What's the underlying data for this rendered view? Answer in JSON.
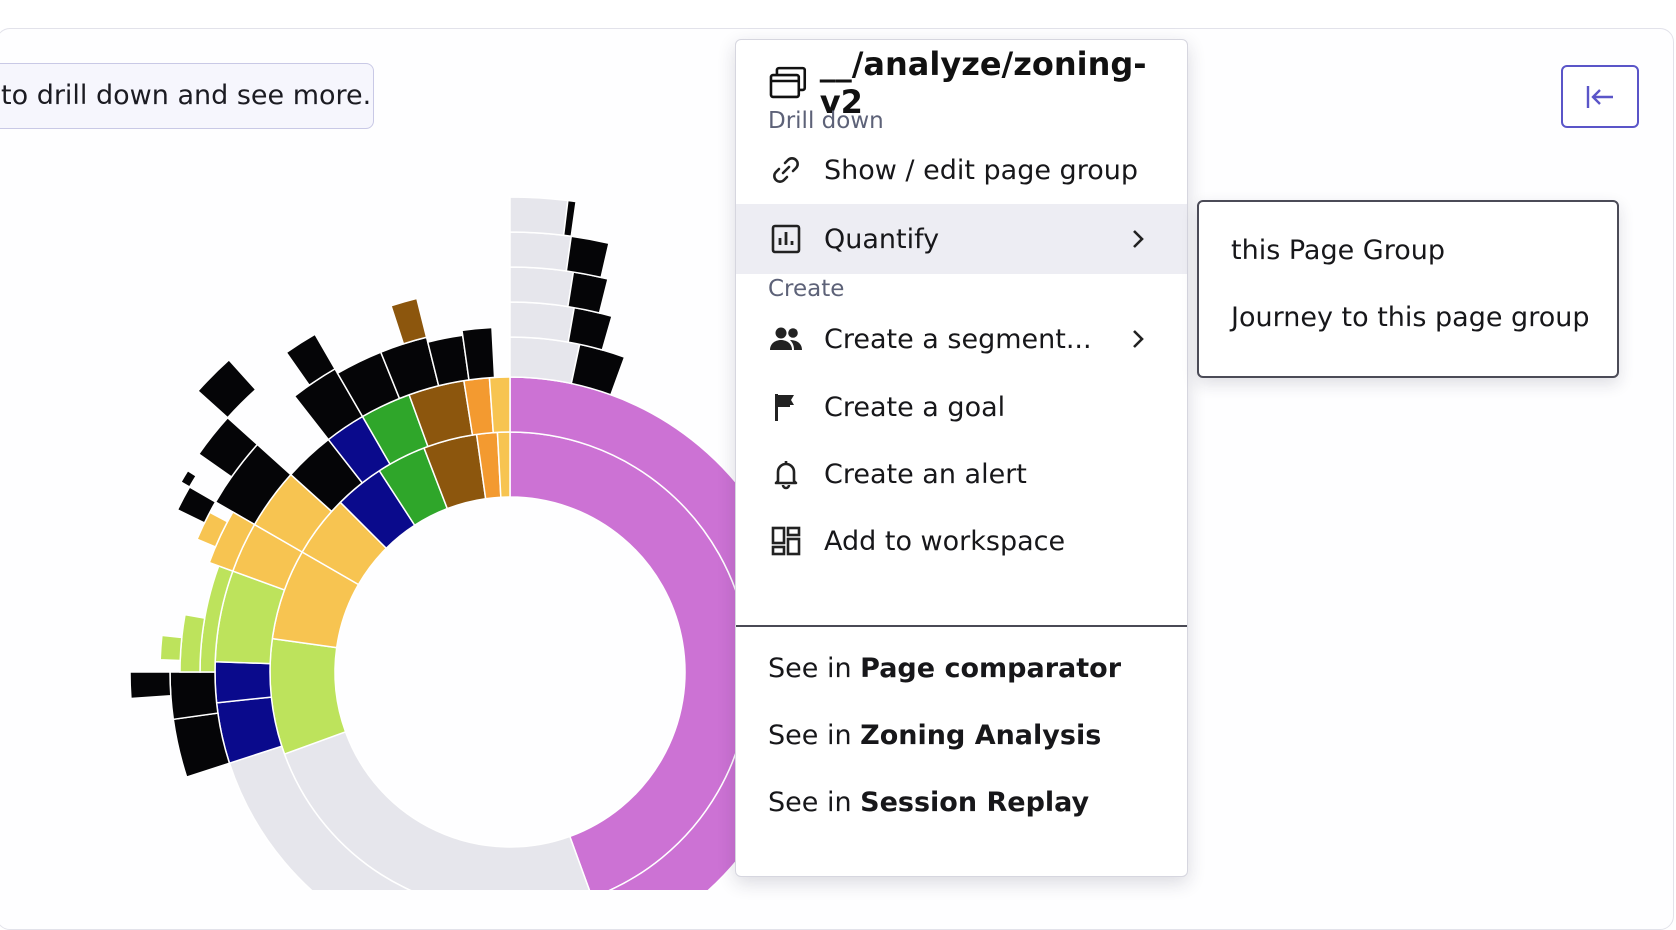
{
  "hint": {
    "text": "to drill down and see more."
  },
  "collapse_button": {
    "icon": "arrow-left-to-line-icon",
    "color": "#5a55c8"
  },
  "context_menu": {
    "title": "__/analyze/zoning-v2",
    "title_icon": "page-group-icon",
    "drill_down_label": "Drill down",
    "items_drill": [
      {
        "label": "Show / edit page group",
        "icon": "link-icon"
      },
      {
        "label": "Quantify",
        "icon": "bar-chart-icon",
        "has_submenu": true,
        "active": true
      }
    ],
    "create_label": "Create",
    "items_create": [
      {
        "label": "Create a segment...",
        "icon": "users-icon",
        "has_submenu": true
      },
      {
        "label": "Create a goal",
        "icon": "flag-icon"
      },
      {
        "label": "Create an alert",
        "icon": "bell-icon"
      },
      {
        "label": "Add to workspace",
        "icon": "dashboard-icon"
      }
    ],
    "see_in": [
      {
        "prefix": "See in ",
        "target": "Page comparator"
      },
      {
        "prefix": "See in ",
        "target": "Zoning Analysis"
      },
      {
        "prefix": "See in ",
        "target": "Session Replay"
      }
    ]
  },
  "submenu": {
    "items": [
      "this Page Group",
      "Journey to this page group"
    ]
  },
  "colors": {
    "accent": "#5a55c8",
    "pink": "#cc72d4",
    "light_grey": "#e6e6ec",
    "black": "#050507",
    "navy": "#0a0a8c",
    "green": "#2fa62a",
    "brown": "#8c560d",
    "orange": "#f39a30",
    "yellow": "#f7c451",
    "lime": "#bde35c"
  }
}
